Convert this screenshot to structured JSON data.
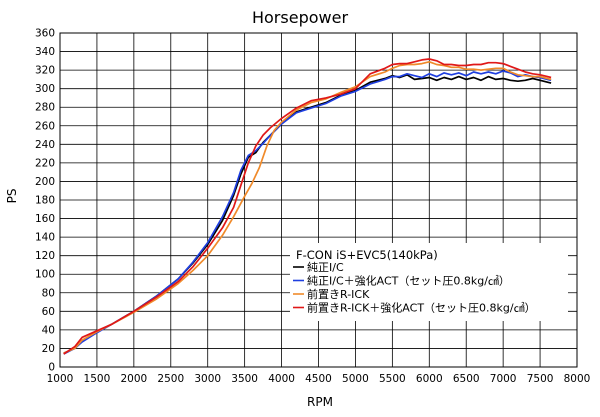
{
  "chart_data": {
    "type": "line",
    "title": "Horsepower",
    "xlabel": "RPM",
    "ylabel": "PS",
    "xlim": [
      1000,
      8000
    ],
    "ylim": [
      0,
      360
    ],
    "xticks": [
      1000,
      1500,
      2000,
      2500,
      3000,
      3500,
      4000,
      4500,
      5000,
      5500,
      6000,
      6500,
      7000,
      7500,
      8000
    ],
    "yticks": [
      0,
      20,
      40,
      60,
      80,
      100,
      120,
      140,
      160,
      180,
      200,
      220,
      240,
      260,
      280,
      300,
      320,
      340,
      360
    ],
    "grid": true,
    "legend": {
      "placement": "lower-right",
      "title": "F-CON iS+EVC5(140kPa)"
    },
    "series": [
      {
        "name": "純正I/C",
        "color": "#000000",
        "x": [
          1050,
          1200,
          1300,
          1500,
          1700,
          2000,
          2300,
          2600,
          2800,
          3000,
          3200,
          3350,
          3450,
          3550,
          3650,
          3750,
          3850,
          4000,
          4200,
          4400,
          4600,
          4800,
          5000,
          5200,
          5400,
          5500,
          5600,
          5700,
          5800,
          5900,
          6000,
          6100,
          6200,
          6300,
          6400,
          6500,
          6600,
          6700,
          6800,
          6900,
          7000,
          7100,
          7200,
          7300,
          7400,
          7500,
          7600,
          7650
        ],
        "y": [
          15,
          20,
          28,
          38,
          46,
          60,
          76,
          95,
          112,
          132,
          158,
          185,
          208,
          226,
          231,
          242,
          250,
          262,
          275,
          280,
          285,
          293,
          298,
          307,
          311,
          314,
          312,
          315,
          310,
          311,
          312,
          309,
          312,
          310,
          313,
          310,
          312,
          309,
          313,
          310,
          311,
          309,
          308,
          309,
          311,
          309,
          307,
          306
        ]
      },
      {
        "name": "純正I/C＋強化ACT（セット圧0.8kg/㎠）",
        "color": "#1f3fe0",
        "x": [
          1050,
          1200,
          1300,
          1500,
          1700,
          2000,
          2300,
          2600,
          2800,
          3000,
          3200,
          3350,
          3450,
          3550,
          3650,
          3750,
          3850,
          4000,
          4200,
          4400,
          4600,
          4800,
          5000,
          5200,
          5400,
          5500,
          5600,
          5700,
          5800,
          5900,
          6000,
          6100,
          6200,
          6300,
          6400,
          6500,
          6600,
          6700,
          6800,
          6900,
          7000,
          7100,
          7200,
          7300,
          7400,
          7500,
          7600,
          7650
        ],
        "y": [
          14,
          20,
          27,
          37,
          46,
          60,
          76,
          95,
          113,
          134,
          162,
          188,
          212,
          228,
          233,
          241,
          250,
          262,
          274,
          279,
          284,
          292,
          297,
          305,
          310,
          313,
          313,
          316,
          314,
          312,
          316,
          313,
          317,
          315,
          317,
          314,
          318,
          316,
          318,
          316,
          319,
          317,
          313,
          315,
          313,
          312,
          310,
          309
        ]
      },
      {
        "name": "前置きR-ICK",
        "color": "#f08a2a",
        "x": [
          1050,
          1200,
          1300,
          1500,
          1700,
          2000,
          2300,
          2600,
          2800,
          3000,
          3200,
          3350,
          3500,
          3600,
          3700,
          3800,
          3900,
          4000,
          4200,
          4400,
          4600,
          4800,
          5000,
          5200,
          5400,
          5500,
          5600,
          5700,
          5800,
          5900,
          6000,
          6100,
          6200,
          6300,
          6400,
          6500,
          6600,
          6700,
          6800,
          6900,
          7000,
          7100,
          7200,
          7300,
          7400,
          7500,
          7600,
          7650
        ],
        "y": [
          15,
          20,
          29,
          38,
          46,
          59,
          73,
          90,
          104,
          120,
          142,
          162,
          184,
          198,
          215,
          238,
          255,
          264,
          277,
          285,
          289,
          296,
          302,
          313,
          318,
          322,
          325,
          326,
          326,
          327,
          329,
          326,
          325,
          323,
          323,
          321,
          321,
          320,
          321,
          322,
          322,
          318,
          315,
          314,
          313,
          313,
          311,
          310
        ]
      },
      {
        "name": "前置きR-ICK＋強化ACT（セット圧0.8kg/㎠）",
        "color": "#e01818",
        "x": [
          1050,
          1200,
          1300,
          1500,
          1700,
          2000,
          2300,
          2600,
          2800,
          3000,
          3200,
          3350,
          3450,
          3550,
          3650,
          3750,
          3850,
          4000,
          4200,
          4400,
          4600,
          4800,
          5000,
          5200,
          5400,
          5500,
          5600,
          5700,
          5800,
          5900,
          6000,
          6100,
          6200,
          6300,
          6400,
          6500,
          6600,
          6700,
          6800,
          6900,
          7000,
          7100,
          7200,
          7300,
          7400,
          7500,
          7600,
          7650
        ],
        "y": [
          14,
          22,
          32,
          39,
          46,
          60,
          75,
          92,
          108,
          128,
          150,
          172,
          196,
          220,
          238,
          250,
          258,
          268,
          279,
          287,
          290,
          294,
          300,
          316,
          322,
          326,
          327,
          327,
          329,
          331,
          332,
          330,
          326,
          326,
          325,
          325,
          326,
          326,
          328,
          328,
          327,
          324,
          321,
          318,
          316,
          315,
          313,
          312
        ]
      }
    ]
  }
}
